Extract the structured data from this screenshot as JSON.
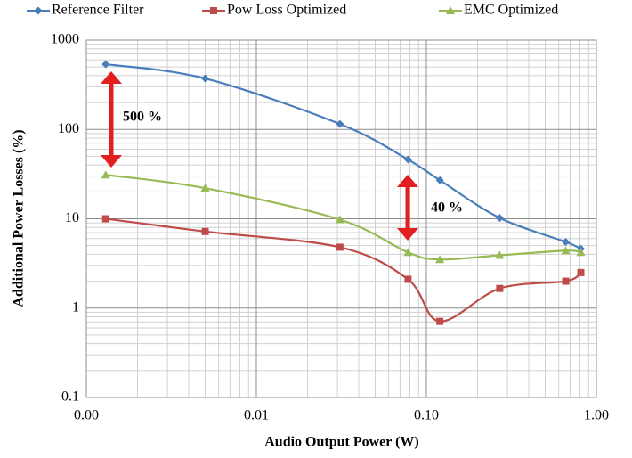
{
  "chart_data": {
    "type": "line",
    "x_label": "Audio Output Power (W)",
    "y_label": "Additional Power Losses (%)",
    "annotations": [
      "500 %",
      "40 %"
    ],
    "annotation_color": "#e31e1e",
    "x": [
      0.0013,
      0.005,
      0.031,
      0.078,
      0.12,
      0.27,
      0.66,
      0.81
    ],
    "series": [
      {
        "name": "Reference Filter",
        "color": "#4a7ebb",
        "marker": "diamond",
        "values": [
          537,
          372,
          115,
          46,
          27,
          10.2,
          5.5,
          4.6
        ]
      },
      {
        "name": "Pow Loss Optimized",
        "color": "#be4b48",
        "marker": "square",
        "values": [
          10,
          7.2,
          4.8,
          2.1,
          0.71,
          1.66,
          2.0,
          2.5
        ]
      },
      {
        "name": "EMC Optimized",
        "color": "#98b954",
        "marker": "triangle",
        "values": [
          31,
          22,
          9.8,
          4.2,
          3.5,
          3.9,
          4.4,
          4.2
        ]
      }
    ],
    "x_log": true,
    "y_log": true,
    "xlim": [
      0.001,
      1
    ],
    "xticks": [
      {
        "value": 0.001,
        "label": "0.00"
      },
      0.01,
      {
        "value": 0.1,
        "label": "0.10"
      },
      {
        "value": 1,
        "label": "1.00"
      }
    ],
    "ylim": [
      0.1,
      1000
    ],
    "yticks": [
      0.1,
      1,
      10,
      100,
      1000
    ],
    "grid": true,
    "minor_grid": true,
    "legend": "top"
  }
}
